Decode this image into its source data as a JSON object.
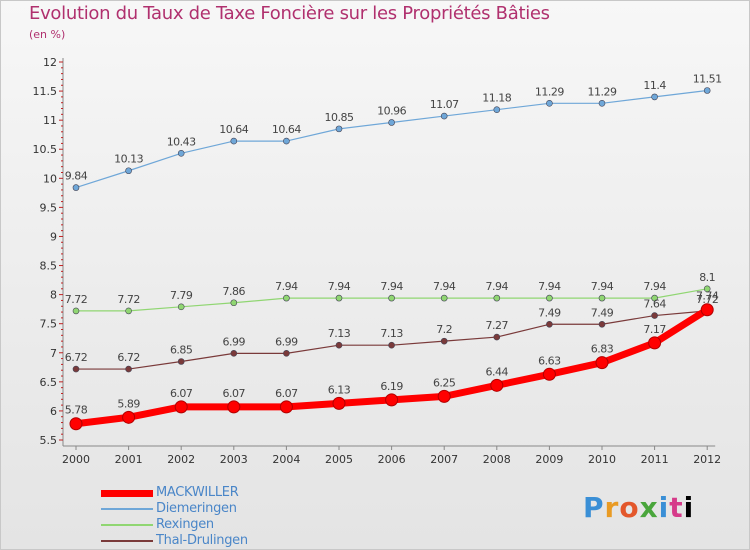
{
  "title": "Evolution du Taux de Taxe Foncière sur les Propriétés Bâties",
  "unit_note": "(en %)",
  "logo": {
    "letters": [
      "P",
      "r",
      "o",
      "x",
      "i",
      "t",
      "i"
    ]
  },
  "chart_data": {
    "type": "line",
    "x": [
      "2000",
      "2001",
      "2002",
      "2003",
      "2004",
      "2005",
      "2006",
      "2007",
      "2008",
      "2009",
      "2010",
      "2011",
      "2012"
    ],
    "ylim": [
      5.5,
      12
    ],
    "yticks": [
      "5.5",
      "6",
      "6.5",
      "7",
      "7.5",
      "8",
      "8.5",
      "9",
      "9.5",
      "10",
      "10.5",
      "11",
      "11.5",
      "12"
    ],
    "grid": false,
    "legend": "bottom-left",
    "series": [
      {
        "name": "Diemeringen",
        "color": "#6fa7d8",
        "values": [
          9.84,
          10.13,
          10.43,
          10.64,
          10.64,
          10.85,
          10.96,
          11.07,
          11.18,
          11.29,
          11.29,
          11.4,
          11.51
        ],
        "labels": [
          "9.84",
          "10.13",
          "10.43",
          "10.64",
          "10.64",
          "10.85",
          "10.96",
          "11.07",
          "11.18",
          "11.29",
          "11.29",
          "11.4",
          "11.51"
        ]
      },
      {
        "name": "Rexingen",
        "color": "#90d672",
        "values": [
          7.72,
          7.72,
          7.79,
          7.86,
          7.94,
          7.94,
          7.94,
          7.94,
          7.94,
          7.94,
          7.94,
          7.94,
          8.1
        ],
        "labels": [
          "7.72",
          "7.72",
          "7.79",
          "7.86",
          "7.94",
          "7.94",
          "7.94",
          "7.94",
          "7.94",
          "7.94",
          "7.94",
          "7.94",
          "8.1"
        ]
      },
      {
        "name": "Thal-Drulingen",
        "color": "#7a3a3a",
        "values": [
          6.72,
          6.72,
          6.85,
          6.99,
          6.99,
          7.13,
          7.13,
          7.2,
          7.27,
          7.49,
          7.49,
          7.64,
          7.72
        ],
        "labels": [
          "6.72",
          "6.72",
          "6.85",
          "6.99",
          "6.99",
          "7.13",
          "7.13",
          "7.2",
          "7.27",
          "7.49",
          "7.49",
          "7.64",
          "7.72"
        ]
      },
      {
        "name": "MACKWILLER",
        "color": "#ff0000",
        "values": [
          5.78,
          5.89,
          6.07,
          6.07,
          6.07,
          6.13,
          6.19,
          6.25,
          6.44,
          6.63,
          6.83,
          7.17,
          7.74
        ],
        "labels": [
          "5.78",
          "5.89",
          "6.07",
          "6.07",
          "6.07",
          "6.13",
          "6.19",
          "6.25",
          "6.44",
          "6.63",
          "6.83",
          "7.17",
          "7.74"
        ]
      }
    ],
    "legend_order": [
      "MACKWILLER",
      "Diemeringen",
      "Rexingen",
      "Thal-Drulingen"
    ]
  }
}
